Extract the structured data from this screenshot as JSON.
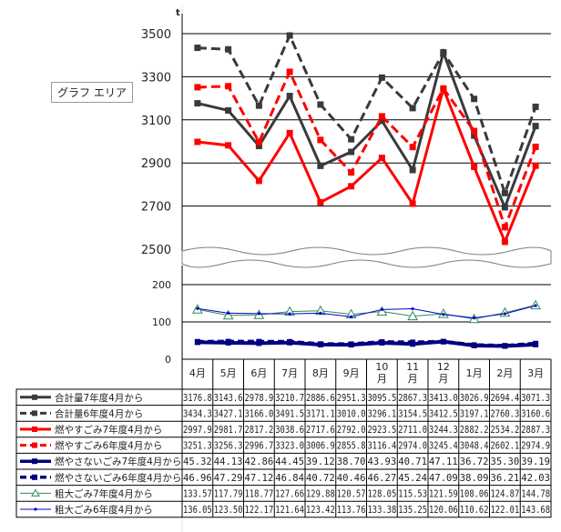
{
  "tooltip": "グラフ エリア",
  "unit_label": "t",
  "chart_data": {
    "type": "line",
    "categories": [
      "4月",
      "5月",
      "6月",
      "7月",
      "8月",
      "9月",
      "10月",
      "11月",
      "12月",
      "1月",
      "2月",
      "3月"
    ],
    "upper_axis": {
      "ylim": [
        2500,
        3600
      ],
      "ticks": [
        "2500",
        "2700",
        "2900",
        "3100",
        "3300",
        "3500"
      ]
    },
    "lower_axis": {
      "ylim": [
        0,
        200
      ],
      "ticks": [
        "0",
        "100",
        "200"
      ]
    },
    "series": [
      {
        "name": "合計量7年度4月から",
        "axis": "upper",
        "color": "#3a3a3a",
        "dash": false,
        "marker": "square",
        "values": [
          3176.8,
          3143.6,
          2978.9,
          3210.7,
          2886.6,
          2951.3,
          3095.5,
          2867.3,
          3413.0,
          3026.9,
          2694.4,
          3071.3
        ],
        "labels": [
          "3176.8",
          "3143.6",
          "2978.9",
          "3210.7",
          "2886.6",
          "2951.3",
          "3095.5",
          "2867.3",
          "3413.0",
          "3026.9",
          "2694.4",
          "3071.3"
        ]
      },
      {
        "name": "合計量6年度4月から",
        "axis": "upper",
        "color": "#3a3a3a",
        "dash": true,
        "marker": "square",
        "values": [
          3434.3,
          3427.1,
          3166.0,
          3491.5,
          3171.1,
          3010.0,
          3296.1,
          3154.5,
          3412.5,
          3197.1,
          2760.3,
          3160.6
        ],
        "labels": [
          "3434.3",
          "3427.1",
          "3166.0",
          "3491.5",
          "3171.1",
          "3010.0",
          "3296.1",
          "3154.5",
          "3412.5",
          "3197.1",
          "2760.3",
          "3160.6"
        ]
      },
      {
        "name": "燃やすごみ7年度4月から",
        "axis": "upper",
        "color": "#ff0000",
        "dash": false,
        "marker": "square",
        "values": [
          2997.9,
          2981.7,
          2817.2,
          3038.6,
          2717.6,
          2792.0,
          2923.5,
          2711.0,
          3244.3,
          2882.2,
          2534.2,
          2887.3
        ],
        "labels": [
          "2997.9",
          "2981.7",
          "2817.2",
          "3038.6",
          "2717.6",
          "2792.0",
          "2923.5",
          "2711.0",
          "3244.3",
          "2882.2",
          "2534.2",
          "2887.3"
        ]
      },
      {
        "name": "燃やすごみ6年度4月から",
        "axis": "upper",
        "color": "#ff0000",
        "dash": true,
        "marker": "square",
        "values": [
          3251.3,
          3256.3,
          2996.7,
          3323.0,
          3006.9,
          2855.8,
          3116.4,
          2974.0,
          3245.4,
          3048.4,
          2602.1,
          2974.9
        ],
        "labels": [
          "3251.3",
          "3256.3",
          "2996.7",
          "3323.0",
          "3006.9",
          "2855.8",
          "3116.4",
          "2974.0",
          "3245.4",
          "3048.4",
          "2602.1",
          "2974.9"
        ]
      },
      {
        "name": "燃やさないごみ7年度4月から",
        "axis": "lower",
        "color": "#000080",
        "dash": false,
        "marker": "square",
        "values": [
          45.32,
          44.13,
          42.86,
          44.45,
          39.12,
          38.7,
          43.93,
          40.71,
          47.11,
          36.72,
          35.3,
          39.19
        ],
        "labels": [
          "45.32",
          "44.13",
          "42.86",
          "44.45",
          "39.12",
          "38.70",
          "43.93",
          "40.71",
          "47.11",
          "36.72",
          "35.30",
          "39.19"
        ]
      },
      {
        "name": "燃やさないごみ6年度4月から",
        "axis": "lower",
        "color": "#000080",
        "dash": true,
        "marker": "square",
        "values": [
          46.96,
          47.29,
          47.12,
          46.84,
          40.72,
          40.46,
          46.27,
          45.24,
          47.09,
          38.09,
          36.21,
          42.03
        ],
        "labels": [
          "46.96",
          "47.29",
          "47.12",
          "46.84",
          "40.72",
          "40.46",
          "46.27",
          "45.24",
          "47.09",
          "38.09",
          "36.21",
          "42.03"
        ]
      },
      {
        "name": "粗大ごみ7年度4月から",
        "axis": "lower",
        "color": "#2e8b57",
        "dash": false,
        "marker": "triangle",
        "values": [
          133.57,
          117.79,
          118.77,
          127.66,
          129.88,
          120.57,
          128.05,
          115.53,
          121.59,
          108.06,
          124.87,
          144.78
        ],
        "labels": [
          "133.57",
          "117.79",
          "118.77",
          "127.66",
          "129.88",
          "120.57",
          "128.05",
          "115.53",
          "121.59",
          "108.06",
          "124.87",
          "144.78"
        ]
      },
      {
        "name": "粗大ごみ6年度4月から",
        "axis": "lower",
        "color": "#0000cd",
        "dash": false,
        "marker": "dot",
        "values": [
          136.05,
          123.5,
          122.17,
          121.64,
          123.42,
          113.76,
          133.38,
          135.25,
          120.06,
          110.62,
          122.01,
          143.68
        ],
        "labels": [
          "136.05",
          "123.50",
          "122.17",
          "121.64",
          "123.42",
          "113.76",
          "133.38",
          "135.25",
          "120.06",
          "110.62",
          "122.01",
          "143.68"
        ]
      }
    ]
  }
}
